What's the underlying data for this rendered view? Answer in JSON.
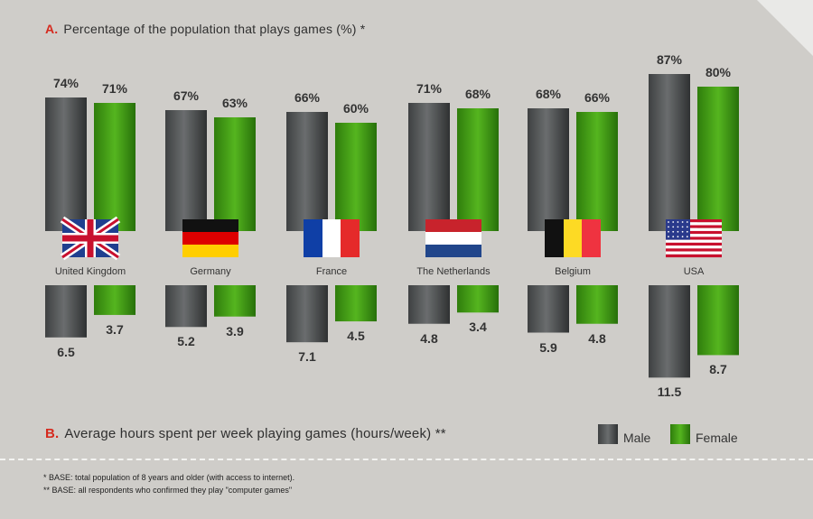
{
  "chart_data": [
    {
      "type": "bar",
      "title_letter": "A.",
      "title": "Percentage of the population that plays games (%) *",
      "categories": [
        "United Kingdom",
        "Germany",
        "France",
        "The Netherlands",
        "Belgium",
        "USA"
      ],
      "series": [
        {
          "name": "Male",
          "values": [
            74,
            67,
            66,
            71,
            68,
            87
          ],
          "labels": [
            "74%",
            "67%",
            "66%",
            "71%",
            "68%",
            "87%"
          ]
        },
        {
          "name": "Female",
          "values": [
            71,
            63,
            60,
            68,
            66,
            80
          ],
          "labels": [
            "71%",
            "63%",
            "60%",
            "68%",
            "66%",
            "80%"
          ]
        }
      ]
    },
    {
      "type": "bar",
      "title_letter": "B.",
      "title": "Average hours spent per week playing games (hours/week) **",
      "categories": [
        "United Kingdom",
        "Germany",
        "France",
        "The Netherlands",
        "Belgium",
        "USA"
      ],
      "series": [
        {
          "name": "Male",
          "values": [
            6.5,
            5.2,
            7.1,
            4.8,
            5.9,
            11.5
          ],
          "labels": [
            "6.5",
            "5.2",
            "7.1",
            "4.8",
            "5.9",
            "11.5"
          ]
        },
        {
          "name": "Female",
          "values": [
            3.7,
            3.9,
            4.5,
            3.4,
            4.8,
            8.7
          ],
          "labels": [
            "3.7",
            "3.9",
            "4.5",
            "3.4",
            "4.8",
            "8.7"
          ]
        }
      ]
    }
  ],
  "countries": [
    "United Kingdom",
    "Germany",
    "France",
    "The Netherlands",
    "Belgium",
    "USA"
  ],
  "flag_icons": [
    "uk-flag-icon",
    "germany-flag-icon",
    "france-flag-icon",
    "netherlands-flag-icon",
    "belgium-flag-icon",
    "usa-flag-icon"
  ],
  "legend": {
    "male": "Male",
    "female": "Female"
  },
  "colors": {
    "male": "#4e5050",
    "female": "#3f9a12",
    "title_letter": "#d52a1e",
    "background": "#cfcdc9"
  },
  "footnotes": [
    "* BASE: total population of 8 years and older (with access to internet).",
    "** BASE: all respondents who confirmed they play \"computer games\""
  ]
}
